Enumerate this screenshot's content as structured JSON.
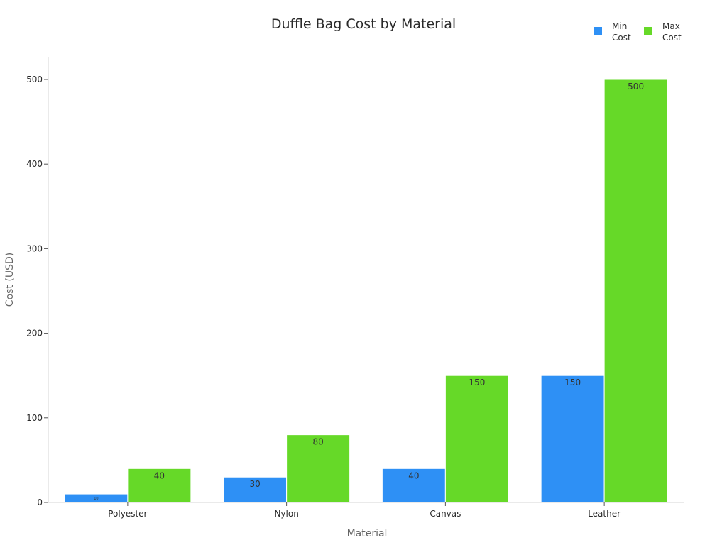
{
  "chart_data": {
    "type": "bar",
    "title": "Duffle Bag Cost by Material",
    "xlabel": "Material",
    "ylabel": "Cost (USD)",
    "categories": [
      "Polyester",
      "Nylon",
      "Canvas",
      "Leather"
    ],
    "series": [
      {
        "name": "Min Cost",
        "legend_lines": [
          "Min",
          "Cost"
        ],
        "color": "#2e90f5",
        "values": [
          10,
          30,
          40,
          150
        ]
      },
      {
        "name": "Max Cost",
        "legend_lines": [
          "Max",
          "Cost"
        ],
        "color": "#66d928",
        "values": [
          40,
          80,
          150,
          500
        ]
      }
    ],
    "ylim": [
      0,
      525
    ],
    "yticks": [
      0,
      100,
      200,
      300,
      400,
      500
    ],
    "grid": false,
    "legend": "top-right"
  }
}
